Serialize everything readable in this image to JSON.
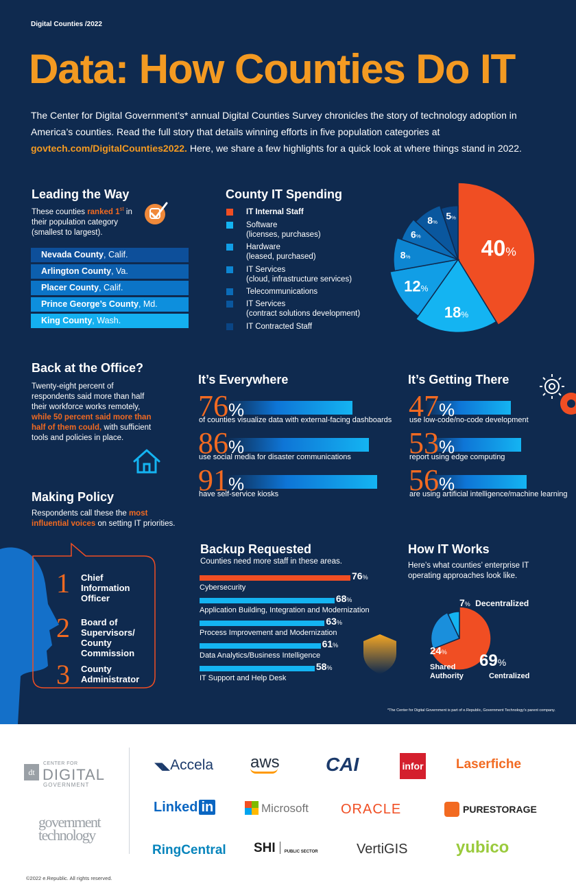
{
  "kicker": "Digital Counties /2022",
  "title": "Data: How Counties Do IT",
  "intro": {
    "text1": "The Center for Digital Government’s* annual Digital Counties Survey chronicles the story of technology adoption in America’s counties. Read the full story that details winning efforts in five population categories at ",
    "link": "govtech.com/DigitalCounties2022.",
    "text2": " Here, we share a few highlights for a quick look at where things stand in 2022."
  },
  "leading": {
    "heading": "Leading the Way",
    "desc_a": "These counties ",
    "desc_b": "ranked 1",
    "desc_sup": "st",
    "desc_c": " in their population category (smallest to largest).",
    "counties": [
      {
        "name": "Nevada County",
        "state": ", Calif.",
        "color": "#0d4f9a"
      },
      {
        "name": "Arlington County",
        "state": ", Va.",
        "color": "#0c5fae"
      },
      {
        "name": "Placer County",
        "state": ", Calif.",
        "color": "#0b74c7"
      },
      {
        "name": "Prince George’s County",
        "state": ", Md.",
        "color": "#0d8fdd"
      },
      {
        "name": "King County",
        "state": ", Wash.",
        "color": "#14b0f0"
      }
    ]
  },
  "spending": {
    "heading": "County IT Spending",
    "legend": [
      {
        "label": "IT Internal Staff",
        "sub": "",
        "color": "#f04e23"
      },
      {
        "label": "Software",
        "sub": "(licenses, purchases)",
        "color": "#14b4f2"
      },
      {
        "label": "Hardware",
        "sub": "(leased, purchased)",
        "color": "#119ee6"
      },
      {
        "label": "IT Services",
        "sub": "(cloud, infrastructure services)",
        "color": "#0d86d2"
      },
      {
        "label": "Telecommunications",
        "sub": "",
        "color": "#0b6cb8"
      },
      {
        "label": "IT Services",
        "sub": "(contract solutions development)",
        "color": "#0a579e"
      },
      {
        "label": "IT Contracted Staff",
        "sub": "",
        "color": "#0a4585"
      }
    ]
  },
  "chart_data": [
    {
      "type": "pie",
      "title": "County IT Spending",
      "categories": [
        "IT Internal Staff",
        "Software (licenses, purchases)",
        "Hardware (leased, purchased)",
        "IT Services (cloud, infrastructure services)",
        "Telecommunications",
        "IT Services (contract solutions development)",
        "IT Contracted Staff"
      ],
      "values": [
        40,
        18,
        12,
        8,
        6,
        8,
        5
      ],
      "labels": [
        "40",
        "18",
        "12",
        "8",
        "6",
        "8",
        "5"
      ],
      "colors": [
        "#f04e23",
        "#14b4f2",
        "#119ee6",
        "#0d86d2",
        "#0b6cb8",
        "#0a579e",
        "#0a4585"
      ],
      "radii": [
        1.0,
        0.95,
        0.9,
        0.84,
        0.78,
        0.74,
        0.7
      ]
    },
    {
      "type": "pie",
      "title": "How IT Works",
      "categories": [
        "Centralized",
        "Shared Authority",
        "Decentralized"
      ],
      "values": [
        69,
        24,
        7
      ],
      "colors": [
        "#f04e23",
        "#1a8fdc",
        "#14b4f2"
      ],
      "radii": [
        1.0,
        0.9,
        0.85
      ]
    },
    {
      "type": "bar",
      "title": "Backup Requested",
      "categories": [
        "Cybersecurity",
        "Application Building, Integration and Modernization",
        "Process Improvement and Modernization",
        "Data Analytics/Business Intelligence",
        "IT Support and Help Desk"
      ],
      "values": [
        76,
        68,
        63,
        61,
        58
      ],
      "colors": [
        "#f04e23",
        "#14b4f2",
        "#14b4f2",
        "#14b4f2",
        "#14b4f2"
      ]
    }
  ],
  "office": {
    "heading": "Back at the Office?",
    "text_a": "Twenty-eight percent of respondents said more than half their workforce works remotely, ",
    "text_b": "while 50 percent said more than half of them could,",
    "text_c": " with sufficient tools and policies in place."
  },
  "policy": {
    "heading": "Making Policy",
    "text_a": "Respondents call these the ",
    "text_b": "most influential voices",
    "text_c": " on setting IT priorities.",
    "items": [
      {
        "num": "1",
        "label": "Chief Information Officer"
      },
      {
        "num": "2",
        "label": "Board of Supervisors/ County Commission"
      },
      {
        "num": "3",
        "label": "County Administrator"
      }
    ]
  },
  "everywhere": {
    "heading": "It’s Everywhere",
    "items": [
      {
        "value": "76",
        "fraction": 0.76,
        "caption": "of counties visualize data with external-facing dashboards"
      },
      {
        "value": "86",
        "fraction": 0.86,
        "caption": "use social media for disaster communications"
      },
      {
        "value": "91",
        "fraction": 0.91,
        "caption": "have self-service kiosks"
      }
    ]
  },
  "getting": {
    "heading": "It’s Getting There",
    "items": [
      {
        "value": "47",
        "fraction": 0.47,
        "caption": "use low-code/no-code development"
      },
      {
        "value": "53",
        "fraction": 0.53,
        "caption": "report using edge computing"
      },
      {
        "value": "56",
        "fraction": 0.56,
        "caption": "are using artificial intelligence/machine learning"
      }
    ]
  },
  "backup": {
    "heading": "Backup Requested",
    "sub": "Counties need more staff in these areas."
  },
  "howit": {
    "heading": "How IT Works",
    "sub": "Here’s what counties’ enterprise IT operating approaches look like.",
    "decentralized_value": "7",
    "decentralized_label": "Decentralized",
    "shared_value": "24",
    "shared_label": "Shared Authority",
    "centralized_value": "69",
    "centralized_label": "Centralized"
  },
  "pct_sign": "%",
  "footnote": "*The Center for Digital Government is part of e.Republic, Government Technology’s parent company.",
  "sponsors": {
    "cdg_top": "CENTER FOR",
    "cdg_mid": "DIGITAL",
    "cdg_bot": "GOVERNMENT",
    "cdg_mark": "dt",
    "govtech_1": "government",
    "govtech_2": "technology",
    "logos": [
      "Accela",
      "aws",
      "CAI",
      "infor",
      "Laserfiche",
      "Linked",
      "in",
      "Microsoft",
      "ORACLE",
      "PURESTORAGE",
      "RingCentral",
      "SHI",
      "PUBLIC SECTOR",
      "VertiGIS",
      "yubico"
    ]
  },
  "copyright": "©2022 e.Republic. All rights reserved."
}
